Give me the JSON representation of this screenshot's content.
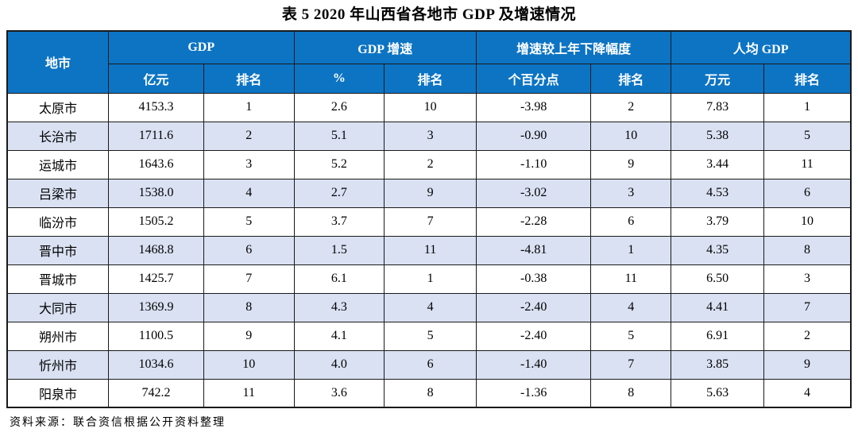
{
  "title": "表 5  2020 年山西省各地市 GDP 及增速情况",
  "source_note": "资料来源：联合资信根据公开资料整理",
  "colors": {
    "header_bg": "#0d74c4",
    "stripe_bg": "#d9e1f2",
    "border": "#1a1a1a",
    "header_text": "#ffffff"
  },
  "table": {
    "corner_header": "地市",
    "groups": [
      {
        "label": "GDP",
        "sub": [
          "亿元",
          "排名"
        ]
      },
      {
        "label": "GDP 增速",
        "sub": [
          "%",
          "排名"
        ]
      },
      {
        "label": "增速较上年下降幅度",
        "sub": [
          "个百分点",
          "排名"
        ]
      },
      {
        "label": "人均 GDP",
        "sub": [
          "万元",
          "排名"
        ]
      }
    ],
    "rows": [
      {
        "city": "太原市",
        "values": [
          "4153.3",
          "1",
          "2.6",
          "10",
          "-3.98",
          "2",
          "7.83",
          "1"
        ]
      },
      {
        "city": "长治市",
        "values": [
          "1711.6",
          "2",
          "5.1",
          "3",
          "-0.90",
          "10",
          "5.38",
          "5"
        ]
      },
      {
        "city": "运城市",
        "values": [
          "1643.6",
          "3",
          "5.2",
          "2",
          "-1.10",
          "9",
          "3.44",
          "11"
        ]
      },
      {
        "city": "吕梁市",
        "values": [
          "1538.0",
          "4",
          "2.7",
          "9",
          "-3.02",
          "3",
          "4.53",
          "6"
        ]
      },
      {
        "city": "临汾市",
        "values": [
          "1505.2",
          "5",
          "3.7",
          "7",
          "-2.28",
          "6",
          "3.79",
          "10"
        ]
      },
      {
        "city": "晋中市",
        "values": [
          "1468.8",
          "6",
          "1.5",
          "11",
          "-4.81",
          "1",
          "4.35",
          "8"
        ]
      },
      {
        "city": "晋城市",
        "values": [
          "1425.7",
          "7",
          "6.1",
          "1",
          "-0.38",
          "11",
          "6.50",
          "3"
        ]
      },
      {
        "city": "大同市",
        "values": [
          "1369.9",
          "8",
          "4.3",
          "4",
          "-2.40",
          "4",
          "4.41",
          "7"
        ]
      },
      {
        "city": "朔州市",
        "values": [
          "1100.5",
          "9",
          "4.1",
          "5",
          "-2.40",
          "5",
          "6.91",
          "2"
        ]
      },
      {
        "city": "忻州市",
        "values": [
          "1034.6",
          "10",
          "4.0",
          "6",
          "-1.40",
          "7",
          "3.85",
          "9"
        ]
      },
      {
        "city": "阳泉市",
        "values": [
          "742.2",
          "11",
          "3.6",
          "8",
          "-1.36",
          "8",
          "5.63",
          "4"
        ]
      }
    ]
  }
}
